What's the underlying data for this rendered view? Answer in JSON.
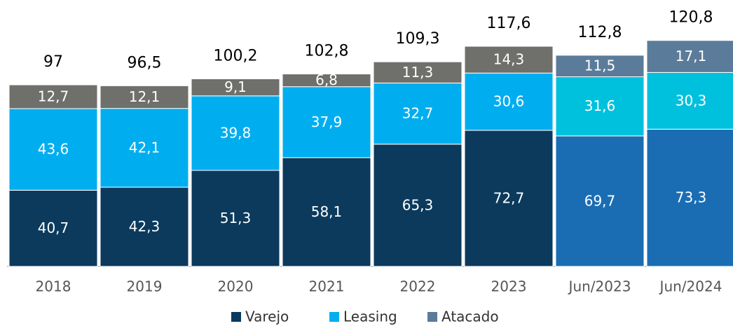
{
  "chart_data": {
    "type": "stacked_bar",
    "categories": [
      "2018",
      "2019",
      "2020",
      "2021",
      "2022",
      "2023",
      "Jun/2023",
      "Jun/2024"
    ],
    "series": [
      {
        "name": "Varejo",
        "color": "#0b3a5d",
        "colors": [
          "#0b3a5d",
          "#0b3a5d",
          "#0b3a5d",
          "#0b3a5d",
          "#0b3a5d",
          "#0b3a5d",
          "#1a6db3",
          "#1a6db3"
        ],
        "values": [
          40.7,
          42.3,
          51.3,
          58.1,
          65.3,
          72.7,
          69.7,
          73.3
        ],
        "value_labels": [
          "40,7",
          "42,3",
          "51,3",
          "58,1",
          "65,3",
          "72,7",
          "69,7",
          "73,3"
        ]
      },
      {
        "name": "Leasing",
        "color": "#00aeef",
        "colors": [
          "#00aeef",
          "#00aeef",
          "#00aeef",
          "#00aeef",
          "#00aeef",
          "#00aeef",
          "#00c1dd",
          "#00c1dd"
        ],
        "values": [
          43.6,
          42.1,
          39.8,
          37.9,
          32.7,
          30.6,
          31.6,
          30.3
        ],
        "value_labels": [
          "43,6",
          "42,1",
          "39,8",
          "37,9",
          "32,7",
          "30,6",
          "31,6",
          "30,3"
        ]
      },
      {
        "name": "Atacado",
        "color": "#5b7b9a",
        "colors": [
          "#6f6f6b",
          "#6f6f6b",
          "#6f6f6b",
          "#6f6f6b",
          "#6f6f6b",
          "#6f6f6b",
          "#5b7b9a",
          "#5b7b9a"
        ],
        "values": [
          12.7,
          12.1,
          9.1,
          6.8,
          11.3,
          14.3,
          11.5,
          17.1
        ],
        "value_labels": [
          "12,7",
          "12,1",
          "9,1",
          "6,8",
          "11,3",
          "14,3",
          "11,5",
          "17,1"
        ]
      }
    ],
    "totals": [
      97,
      96.5,
      100.2,
      102.8,
      109.3,
      117.6,
      112.8,
      120.8
    ],
    "total_labels": [
      "97",
      "96,5",
      "100,2",
      "102,8",
      "109,3",
      "117,6",
      "112,8",
      "120,8"
    ],
    "legend": "bottom"
  }
}
